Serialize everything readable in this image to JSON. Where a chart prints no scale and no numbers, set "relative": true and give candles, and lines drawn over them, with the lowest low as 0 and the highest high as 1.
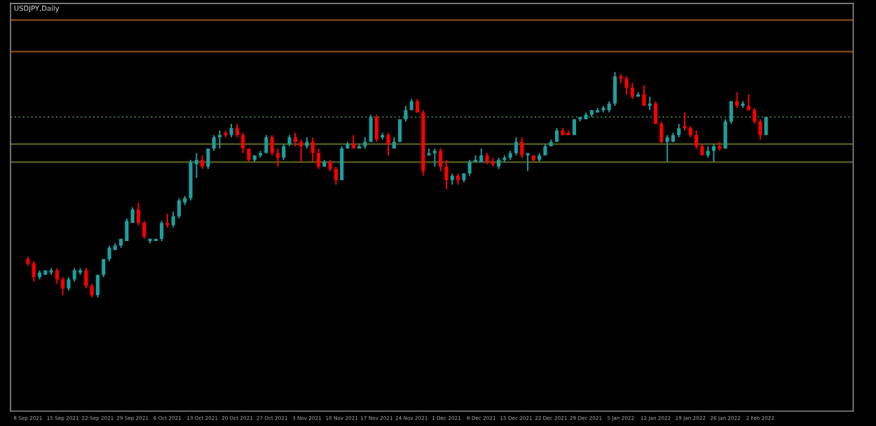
{
  "chart_data": {
    "type": "candlestick",
    "title": "USDJPY,Daily",
    "relative": true,
    "grid": false,
    "categories": [
      "8 Sep 2021",
      null,
      null,
      null,
      null,
      null,
      "15 Sep 2021",
      null,
      null,
      null,
      null,
      null,
      "22 Sep 2021",
      null,
      null,
      null,
      null,
      null,
      "29 Sep 2021",
      null,
      null,
      null,
      null,
      null,
      "6 Oct 2021",
      null,
      null,
      null,
      null,
      null,
      "13 Oct 2021",
      null,
      null,
      null,
      null,
      null,
      "20 Oct 2021",
      null,
      null,
      null,
      null,
      null,
      "27 Oct 2021",
      null,
      null,
      null,
      null,
      null,
      "3 Nov 2021",
      null,
      null,
      null,
      null,
      null,
      "10 Nov 2021",
      null,
      null,
      null,
      null,
      null,
      "17 Nov 2021",
      null,
      null,
      null,
      null,
      null,
      "24 Nov 2021",
      null,
      null,
      null,
      null,
      null,
      "1 Dec 2021",
      null,
      null,
      null,
      null,
      null,
      "8 Dec 2021",
      null,
      null,
      null,
      null,
      null,
      "15 Dec 2021",
      null,
      null,
      null,
      null,
      null,
      "22 Dec 2021",
      null,
      null,
      null,
      null,
      null,
      "29 Dec 2021",
      null,
      null,
      null,
      null,
      null,
      "5 Jan 2022",
      null,
      null,
      null,
      null,
      null,
      "12 Jan 2022",
      null,
      null,
      null,
      null,
      null,
      "19 Jan 2022",
      null,
      null,
      null,
      null,
      null,
      "26 Jan 2022",
      null,
      null,
      null,
      null,
      null,
      "2 Feb 2022",
      null
    ],
    "ohlc": [
      [
        0.17,
        0.18,
        0.14,
        0.15
      ],
      [
        0.15,
        0.16,
        0.07,
        0.09
      ],
      [
        0.09,
        0.12,
        0.08,
        0.11
      ],
      [
        0.1,
        0.12,
        0.1,
        0.12
      ],
      [
        0.11,
        0.13,
        0.1,
        0.12
      ],
      [
        0.12,
        0.13,
        0.06,
        0.08
      ],
      [
        0.08,
        0.09,
        0.01,
        0.04
      ],
      [
        0.04,
        0.09,
        0.03,
        0.08
      ],
      [
        0.08,
        0.13,
        0.07,
        0.12
      ],
      [
        0.11,
        0.13,
        0.1,
        0.12
      ],
      [
        0.12,
        0.13,
        0.04,
        0.05
      ],
      [
        0.05,
        0.06,
        0,
        0.01
      ],
      [
        0.01,
        0.1,
        0,
        0.1
      ],
      [
        0.1,
        0.17,
        0.09,
        0.17
      ],
      [
        0.17,
        0.23,
        0.16,
        0.22
      ],
      [
        0.21,
        0.24,
        0.21,
        0.23
      ],
      [
        0.23,
        0.26,
        0.22,
        0.26
      ],
      [
        0.25,
        0.35,
        0.25,
        0.34
      ],
      [
        0.33,
        0.4,
        0.33,
        0.39
      ],
      [
        0.39,
        0.42,
        0.32,
        0.33
      ],
      [
        0.33,
        0.34,
        0.26,
        0.27
      ],
      [
        0.25,
        0.26,
        0.24,
        0.26
      ],
      [
        0.25,
        0.26,
        0.25,
        0.26
      ],
      [
        0.26,
        0.34,
        0.25,
        0.33
      ],
      [
        0.33,
        0.37,
        0.31,
        0.32
      ],
      [
        0.32,
        0.38,
        0.31,
        0.36
      ],
      [
        0.36,
        0.44,
        0.35,
        0.43
      ],
      [
        0.42,
        0.45,
        0.41,
        0.44
      ],
      [
        0.44,
        0.61,
        0.43,
        0.6
      ],
      [
        0.59,
        0.64,
        0.53,
        0.61
      ],
      [
        0.61,
        0.63,
        0.57,
        0.58
      ],
      [
        0.58,
        0.66,
        0.57,
        0.66
      ],
      [
        0.66,
        0.72,
        0.65,
        0.71
      ],
      [
        0.71,
        0.74,
        0.66,
        0.72
      ],
      [
        0.73,
        0.74,
        0.71,
        0.72
      ],
      [
        0.72,
        0.77,
        0.71,
        0.75
      ],
      [
        0.75,
        0.77,
        0.71,
        0.72
      ],
      [
        0.72,
        0.73,
        0.64,
        0.66
      ],
      [
        0.66,
        0.66,
        0.6,
        0.61
      ],
      [
        0.61,
        0.63,
        0.6,
        0.63
      ],
      [
        0.63,
        0.65,
        0.62,
        0.64
      ],
      [
        0.64,
        0.72,
        0.64,
        0.71
      ],
      [
        0.71,
        0.72,
        0.63,
        0.64
      ],
      [
        0.64,
        0.66,
        0.58,
        0.62
      ],
      [
        0.62,
        0.68,
        0.61,
        0.67
      ],
      [
        0.68,
        0.72,
        0.67,
        0.71
      ],
      [
        0.71,
        0.73,
        0.67,
        0.69
      ],
      [
        0.69,
        0.7,
        0.6,
        0.67
      ],
      [
        0.67,
        0.71,
        0.66,
        0.69
      ],
      [
        0.69,
        0.71,
        0.6,
        0.64
      ],
      [
        0.64,
        0.66,
        0.57,
        0.58
      ],
      [
        0.58,
        0.61,
        0.58,
        0.6
      ],
      [
        0.6,
        0.61,
        0.56,
        0.57
      ],
      [
        0.57,
        0.58,
        0.5,
        0.52
      ],
      [
        0.52,
        0.67,
        0.52,
        0.66
      ],
      [
        0.66,
        0.69,
        0.66,
        0.68
      ],
      [
        0.68,
        0.72,
        0.66,
        0.66
      ],
      [
        0.66,
        0.68,
        0.66,
        0.67
      ],
      [
        0.67,
        0.71,
        0.66,
        0.69
      ],
      [
        0.69,
        0.81,
        0.69,
        0.8
      ],
      [
        0.8,
        0.81,
        0.69,
        0.7
      ],
      [
        0.71,
        0.73,
        0.7,
        0.72
      ],
      [
        0.72,
        0.73,
        0.63,
        0.68
      ],
      [
        0.66,
        0.71,
        0.66,
        0.69
      ],
      [
        0.69,
        0.79,
        0.69,
        0.79
      ],
      [
        0.79,
        0.85,
        0.78,
        0.83
      ],
      [
        0.83,
        0.88,
        0.83,
        0.87
      ],
      [
        0.87,
        0.88,
        0.82,
        0.82
      ],
      [
        0.82,
        0.83,
        0.54,
        0.56
      ],
      [
        0.63,
        0.66,
        0.63,
        0.64
      ],
      [
        0.64,
        0.66,
        0.58,
        0.65
      ],
      [
        0.65,
        0.66,
        0.56,
        0.58
      ],
      [
        0.58,
        0.61,
        0.48,
        0.52
      ],
      [
        0.52,
        0.55,
        0.5,
        0.54
      ],
      [
        0.54,
        0.55,
        0.5,
        0.52
      ],
      [
        0.52,
        0.55,
        0.51,
        0.55
      ],
      [
        0.55,
        0.61,
        0.54,
        0.6
      ],
      [
        0.6,
        0.63,
        0.6,
        0.61
      ],
      [
        0.6,
        0.66,
        0.6,
        0.63
      ],
      [
        0.63,
        0.64,
        0.59,
        0.6
      ],
      [
        0.6,
        0.62,
        0.58,
        0.59
      ],
      [
        0.58,
        0.62,
        0.57,
        0.61
      ],
      [
        0.61,
        0.63,
        0.6,
        0.62
      ],
      [
        0.62,
        0.65,
        0.61,
        0.64
      ],
      [
        0.64,
        0.71,
        0.63,
        0.69
      ],
      [
        0.69,
        0.71,
        0.62,
        0.63
      ],
      [
        0.63,
        0.64,
        0.56,
        0.64
      ],
      [
        0.63,
        0.63,
        0.6,
        0.61
      ],
      [
        0.61,
        0.64,
        0.6,
        0.63
      ],
      [
        0.63,
        0.68,
        0.63,
        0.67
      ],
      [
        0.67,
        0.7,
        0.67,
        0.69
      ],
      [
        0.69,
        0.75,
        0.69,
        0.74
      ],
      [
        0.74,
        0.75,
        0.72,
        0.72
      ],
      [
        0.73,
        0.74,
        0.72,
        0.72
      ],
      [
        0.72,
        0.79,
        0.72,
        0.79
      ],
      [
        0.79,
        0.8,
        0.78,
        0.8
      ],
      [
        0.79,
        0.82,
        0.79,
        0.81
      ],
      [
        0.81,
        0.83,
        0.8,
        0.83
      ],
      [
        0.82,
        0.84,
        0.82,
        0.83
      ],
      [
        0.83,
        0.85,
        0.82,
        0.84
      ],
      [
        0.83,
        0.87,
        0.82,
        0.86
      ],
      [
        0.86,
        1.0,
        0.85,
        0.98
      ],
      [
        0.98,
        0.99,
        0.95,
        0.97
      ],
      [
        0.97,
        0.98,
        0.9,
        0.93
      ],
      [
        0.93,
        0.95,
        0.88,
        0.89
      ],
      [
        0.89,
        0.91,
        0.89,
        0.9
      ],
      [
        0.9,
        0.94,
        0.85,
        0.85
      ],
      [
        0.85,
        0.89,
        0.83,
        0.86
      ],
      [
        0.86,
        0.87,
        0.77,
        0.77
      ],
      [
        0.77,
        0.78,
        0.68,
        0.69
      ],
      [
        0.69,
        0.72,
        0.6,
        0.71
      ],
      [
        0.69,
        0.73,
        0.69,
        0.72
      ],
      [
        0.72,
        0.77,
        0.71,
        0.75
      ],
      [
        0.76,
        0.82,
        0.74,
        0.75
      ],
      [
        0.75,
        0.76,
        0.71,
        0.72
      ],
      [
        0.72,
        0.74,
        0.66,
        0.67
      ],
      [
        0.67,
        0.68,
        0.63,
        0.63
      ],
      [
        0.63,
        0.67,
        0.62,
        0.65
      ],
      [
        0.65,
        0.68,
        0.6,
        0.67
      ],
      [
        0.67,
        0.69,
        0.65,
        0.66
      ],
      [
        0.66,
        0.79,
        0.66,
        0.78
      ],
      [
        0.78,
        0.87,
        0.77,
        0.87
      ],
      [
        0.87,
        0.91,
        0.84,
        0.85
      ],
      [
        0.85,
        0.87,
        0.84,
        0.86
      ],
      [
        0.85,
        0.9,
        0.83,
        0.83
      ],
      [
        0.83,
        0.84,
        0.77,
        0.78
      ],
      [
        0.78,
        0.79,
        0.7,
        0.72
      ],
      [
        0.72,
        0.8,
        0.72,
        0.8
      ]
    ],
    "colors": [
      "#ff0000",
      "#ff0000",
      "#1f9e9e",
      "#1f9e9e",
      "#1f9e9e",
      "#ff0000",
      "#ff0000",
      "#1f9e9e",
      "#1f9e9e",
      "#1f9e9e",
      "#ff0000",
      "#ff0000",
      "#1f9e9e",
      "#1f9e9e",
      "#1f9e9e",
      "#1f9e9e",
      "#1f9e9e",
      "#1f9e9e",
      "#1f9e9e",
      "#ff0000",
      "#ff0000",
      "#1f9e9e",
      "#1f9e9e",
      "#1f9e9e",
      "#ff0000",
      "#1f9e9e",
      "#1f9e9e",
      "#1f9e9e",
      "#1f9e9e",
      "#1f9e9e",
      "#ff0000",
      "#1f9e9e",
      "#1f9e9e",
      "#1f9e9e",
      "#ff0000",
      "#1f9e9e",
      "#ff0000",
      "#ff0000",
      "#ff0000",
      "#1f9e9e",
      "#1f9e9e",
      "#1f9e9e",
      "#ff0000",
      "#ff0000",
      "#1f9e9e",
      "#1f9e9e",
      "#ff0000",
      "#ff0000",
      "#1f9e9e",
      "#ff0000",
      "#ff0000",
      "#1f9e9e",
      "#ff0000",
      "#ff0000",
      "#1f9e9e",
      "#1f9e9e",
      "#ff0000",
      "#1f9e9e",
      "#1f9e9e",
      "#1f9e9e",
      "#ff0000",
      "#1f9e9e",
      "#ff0000",
      "#1f9e9e",
      "#1f9e9e",
      "#1f9e9e",
      "#1f9e9e",
      "#ff0000",
      "#ff0000",
      "#1f9e9e",
      "#1f9e9e",
      "#ff0000",
      "#ff0000",
      "#1f9e9e",
      "#ff0000",
      "#1f9e9e",
      "#1f9e9e",
      "#1f9e9e",
      "#1f9e9e",
      "#ff0000",
      "#ff0000",
      "#1f9e9e",
      "#1f9e9e",
      "#1f9e9e",
      "#1f9e9e",
      "#ff0000",
      "#1f9e9e",
      "#ff0000",
      "#1f9e9e",
      "#1f9e9e",
      "#1f9e9e",
      "#1f9e9e",
      "#ff0000",
      "#ff0000",
      "#1f9e9e",
      "#1f9e9e",
      "#1f9e9e",
      "#1f9e9e",
      "#1f9e9e",
      "#1f9e9e",
      "#1f9e9e",
      "#1f9e9e",
      "#ff0000",
      "#ff0000",
      "#ff0000",
      "#1f9e9e",
      "#ff0000",
      "#1f9e9e",
      "#ff0000",
      "#ff0000",
      "#1f9e9e",
      "#1f9e9e",
      "#1f9e9e",
      "#ff0000",
      "#ff0000",
      "#ff0000",
      "#ff0000",
      "#1f9e9e",
      "#1f9e9e",
      "#ff0000",
      "#1f9e9e",
      "#1f9e9e",
      "#ff0000",
      "#1f9e9e",
      "#ff0000",
      "#ff0000",
      "#ff0000",
      "#1f9e9e"
    ],
    "ref_lines": [
      {
        "axis": "y",
        "value": 1.23,
        "color": "#8a4a10",
        "line_style": "solid"
      },
      {
        "axis": "y",
        "value": 1.09,
        "color": "#8a4a10",
        "line_style": "solid"
      },
      {
        "axis": "y",
        "value": 0.8,
        "color": "#3c6e3c",
        "line_style": "dotted"
      },
      {
        "axis": "y",
        "value": 0.68,
        "color": "#56621e",
        "line_style": "solid"
      },
      {
        "axis": "y",
        "value": 0.6,
        "color": "#56621e",
        "line_style": "solid"
      }
    ]
  }
}
